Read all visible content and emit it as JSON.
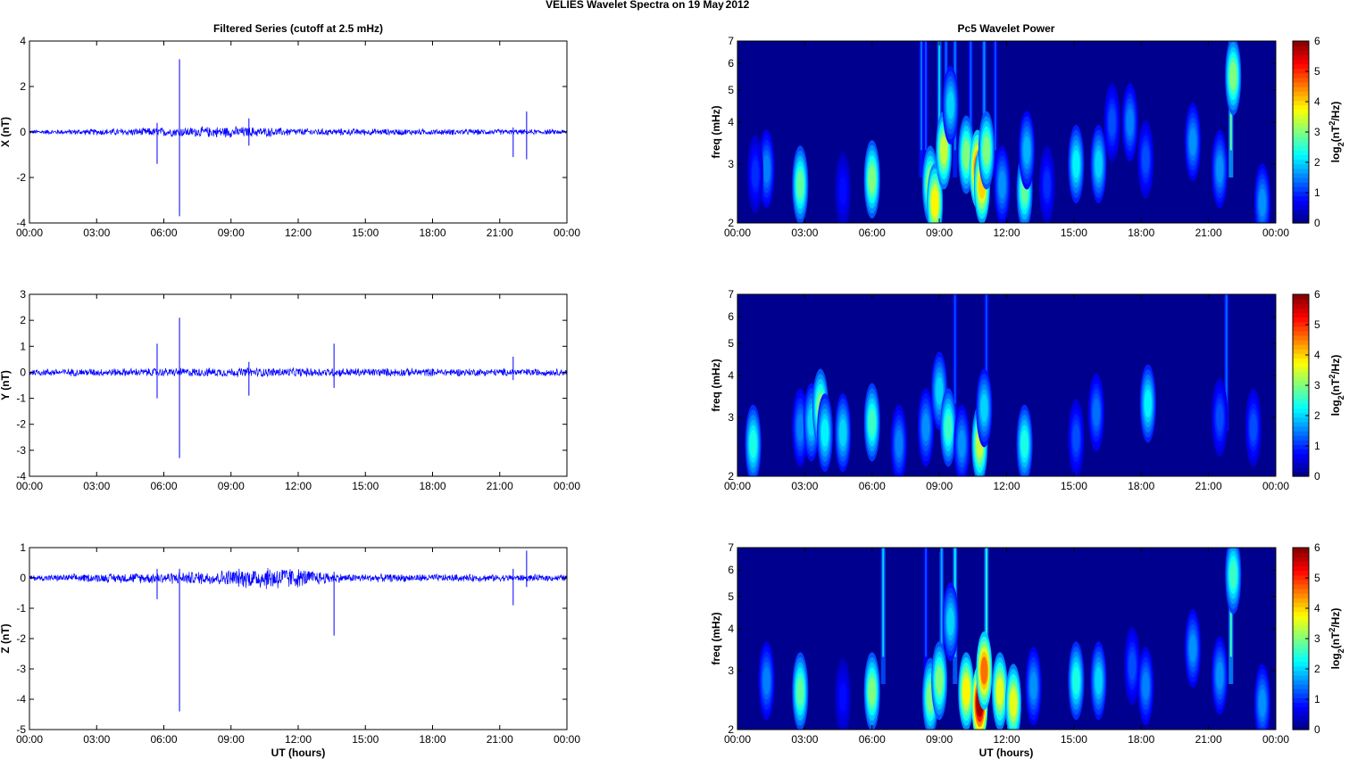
{
  "figure": {
    "title_left": "VELIES Wavelet Spectra on 19 May",
    "title_right": "2012",
    "left_title": "Filtered Series (cutoff at 2.5 mHz)",
    "right_title": "Pc5 Wavelet Power",
    "xlabel": "UT (hours)",
    "freq_label": "freq (mHz)",
    "colorbar_label": "log2(nT2/Hz)"
  },
  "colors": {
    "trace": "#0000ff",
    "spectrum_background": "#00008f"
  },
  "chart_data": [
    {
      "type": "line",
      "ylabel": "X (nT)",
      "ylim": [
        -4,
        4
      ],
      "yticks": [
        -4,
        -2,
        0,
        2,
        4
      ],
      "xticks": [
        "00:00",
        "03:00",
        "06:00",
        "09:00",
        "12:00",
        "15:00",
        "18:00",
        "21:00",
        "00:00"
      ],
      "x_range_hours": [
        0,
        24
      ],
      "noise_amplitude": [
        [
          0,
          0.1
        ],
        [
          9,
          0.28
        ],
        [
          12,
          0.18
        ],
        [
          24,
          0.12
        ]
      ],
      "spikes": [
        {
          "t": 5.7,
          "min": -1.4,
          "max": 0.4
        },
        {
          "t": 6.7,
          "min": -3.7,
          "max": 3.2
        },
        {
          "t": 9.8,
          "min": -0.6,
          "max": 0.6
        },
        {
          "t": 21.6,
          "min": -1.1,
          "max": 0.2
        },
        {
          "t": 22.2,
          "min": -1.2,
          "max": 0.9
        }
      ]
    },
    {
      "type": "line",
      "ylabel": "Y (nT)",
      "ylim": [
        -4,
        3
      ],
      "yticks": [
        -4,
        -3,
        -2,
        -1,
        0,
        1,
        2,
        3
      ],
      "xticks": [
        "00:00",
        "03:00",
        "06:00",
        "09:00",
        "12:00",
        "15:00",
        "18:00",
        "21:00",
        "00:00"
      ],
      "x_range_hours": [
        0,
        24
      ],
      "noise_amplitude": [
        [
          0,
          0.15
        ],
        [
          10,
          0.2
        ],
        [
          24,
          0.15
        ]
      ],
      "spikes": [
        {
          "t": 5.7,
          "min": -1.0,
          "max": 1.1
        },
        {
          "t": 6.7,
          "min": -3.3,
          "max": 2.1
        },
        {
          "t": 9.8,
          "min": -0.9,
          "max": 0.4
        },
        {
          "t": 13.6,
          "min": -0.6,
          "max": 1.1
        },
        {
          "t": 21.6,
          "min": -0.3,
          "max": 0.6
        }
      ]
    },
    {
      "type": "line",
      "ylabel": "Z (nT)",
      "ylim": [
        -5,
        1
      ],
      "yticks": [
        -5,
        -4,
        -3,
        -2,
        -1,
        0,
        1
      ],
      "xticks": [
        "00:00",
        "03:00",
        "06:00",
        "09:00",
        "12:00",
        "15:00",
        "18:00",
        "21:00",
        "00:00"
      ],
      "x_range_hours": [
        0,
        24
      ],
      "noise_amplitude": [
        [
          0,
          0.1
        ],
        [
          8,
          0.25
        ],
        [
          11,
          0.45
        ],
        [
          14,
          0.15
        ],
        [
          24,
          0.12
        ]
      ],
      "spikes": [
        {
          "t": 5.7,
          "min": -0.7,
          "max": 0.3
        },
        {
          "t": 6.7,
          "min": -4.4,
          "max": 0.3
        },
        {
          "t": 13.6,
          "min": -1.9,
          "max": 0.2
        },
        {
          "t": 21.6,
          "min": -0.9,
          "max": 0.3
        },
        {
          "t": 22.2,
          "min": -0.3,
          "max": 0.9
        }
      ]
    },
    {
      "type": "heatmap",
      "ylabel": "freq (mHz)",
      "yscale": "log",
      "ylim": [
        2,
        7
      ],
      "yticks": [
        2,
        3,
        4,
        5,
        6,
        7
      ],
      "zlim": [
        0,
        6
      ],
      "colorbar_ticks": [
        0,
        1,
        2,
        3,
        4,
        5,
        6
      ],
      "xticks": [
        "00:00",
        "03:00",
        "06:00",
        "09:00",
        "12:00",
        "15:00",
        "18:00",
        "21:00",
        "00:00"
      ],
      "blobs": [
        {
          "t": 1.3,
          "f": 2.9,
          "p": 1.5
        },
        {
          "t": 0.8,
          "f": 2.8,
          "p": 1.0
        },
        {
          "t": 2.8,
          "f": 2.6,
          "p": 2.8
        },
        {
          "t": 4.7,
          "f": 2.5,
          "p": 0.8
        },
        {
          "t": 6.0,
          "f": 2.7,
          "p": 3.0
        },
        {
          "t": 8.6,
          "f": 2.6,
          "p": 3.2
        },
        {
          "t": 8.8,
          "f": 2.3,
          "p": 3.8
        },
        {
          "t": 9.2,
          "f": 3.3,
          "p": 3.4
        },
        {
          "t": 9.5,
          "f": 4.5,
          "p": 2.0
        },
        {
          "t": 10.2,
          "f": 3.2,
          "p": 3.0
        },
        {
          "t": 10.7,
          "f": 2.9,
          "p": 4.6
        },
        {
          "t": 10.9,
          "f": 2.6,
          "p": 4.0
        },
        {
          "t": 11.1,
          "f": 3.3,
          "p": 3.0
        },
        {
          "t": 11.8,
          "f": 2.6,
          "p": 1.6
        },
        {
          "t": 12.8,
          "f": 2.5,
          "p": 2.8
        },
        {
          "t": 12.9,
          "f": 3.3,
          "p": 1.8
        },
        {
          "t": 13.8,
          "f": 2.6,
          "p": 1.0
        },
        {
          "t": 15.1,
          "f": 3.0,
          "p": 2.2
        },
        {
          "t": 16.1,
          "f": 3.0,
          "p": 2.0
        },
        {
          "t": 16.7,
          "f": 4.0,
          "p": 1.2
        },
        {
          "t": 17.5,
          "f": 4.0,
          "p": 1.5
        },
        {
          "t": 18.2,
          "f": 3.1,
          "p": 1.2
        },
        {
          "t": 20.3,
          "f": 3.5,
          "p": 1.6
        },
        {
          "t": 21.5,
          "f": 2.9,
          "p": 1.6
        },
        {
          "t": 22.1,
          "f": 5.5,
          "p": 3.0
        },
        {
          "t": 23.4,
          "f": 2.3,
          "p": 1.6
        }
      ],
      "streaks": [
        {
          "t": 8.2,
          "p": 1.4
        },
        {
          "t": 8.4,
          "p": 1.2
        },
        {
          "t": 9.0,
          "p": 2.0
        },
        {
          "t": 9.3,
          "p": 1.4
        },
        {
          "t": 9.7,
          "p": 1.5
        },
        {
          "t": 10.4,
          "p": 1.3
        },
        {
          "t": 11.0,
          "p": 1.6
        },
        {
          "t": 11.5,
          "p": 1.2
        },
        {
          "t": 22.0,
          "p": 2.8
        }
      ]
    },
    {
      "type": "heatmap",
      "ylabel": "freq (mHz)",
      "yscale": "log",
      "ylim": [
        2,
        7
      ],
      "yticks": [
        2,
        3,
        4,
        5,
        6,
        7
      ],
      "zlim": [
        0,
        6
      ],
      "colorbar_ticks": [
        0,
        1,
        2,
        3,
        4,
        5,
        6
      ],
      "xticks": [
        "00:00",
        "03:00",
        "06:00",
        "09:00",
        "12:00",
        "15:00",
        "18:00",
        "21:00",
        "00:00"
      ],
      "blobs": [
        {
          "t": 0.7,
          "f": 2.5,
          "p": 2.4
        },
        {
          "t": 2.8,
          "f": 2.8,
          "p": 1.5
        },
        {
          "t": 3.3,
          "f": 2.9,
          "p": 2.0
        },
        {
          "t": 3.7,
          "f": 3.2,
          "p": 3.0
        },
        {
          "t": 3.9,
          "f": 2.7,
          "p": 2.2
        },
        {
          "t": 4.7,
          "f": 2.7,
          "p": 2.0
        },
        {
          "t": 6.0,
          "f": 2.9,
          "p": 2.6
        },
        {
          "t": 7.2,
          "f": 2.5,
          "p": 1.5
        },
        {
          "t": 8.4,
          "f": 2.8,
          "p": 1.6
        },
        {
          "t": 9.0,
          "f": 3.6,
          "p": 2.0
        },
        {
          "t": 9.4,
          "f": 2.8,
          "p": 2.6
        },
        {
          "t": 10.0,
          "f": 2.5,
          "p": 1.6
        },
        {
          "t": 10.8,
          "f": 2.5,
          "p": 3.4
        },
        {
          "t": 11.0,
          "f": 3.2,
          "p": 2.0
        },
        {
          "t": 12.8,
          "f": 2.5,
          "p": 2.4
        },
        {
          "t": 15.1,
          "f": 2.6,
          "p": 1.2
        },
        {
          "t": 16.0,
          "f": 3.1,
          "p": 1.4
        },
        {
          "t": 18.3,
          "f": 3.3,
          "p": 2.2
        },
        {
          "t": 21.5,
          "f": 3.0,
          "p": 1.2
        },
        {
          "t": 23.0,
          "f": 2.8,
          "p": 1.2
        }
      ],
      "streaks": [
        {
          "t": 9.7,
          "p": 1.2
        },
        {
          "t": 11.1,
          "p": 1.2
        },
        {
          "t": 21.8,
          "p": 1.4
        }
      ]
    },
    {
      "type": "heatmap",
      "ylabel": "freq (mHz)",
      "yscale": "log",
      "ylim": [
        2,
        7
      ],
      "yticks": [
        2,
        3,
        4,
        5,
        6,
        7
      ],
      "zlim": [
        0,
        6
      ],
      "colorbar_ticks": [
        0,
        1,
        2,
        3,
        4,
        5,
        6
      ],
      "xticks": [
        "00:00",
        "03:00",
        "06:00",
        "09:00",
        "12:00",
        "15:00",
        "18:00",
        "21:00",
        "00:00"
      ],
      "blobs": [
        {
          "t": 1.3,
          "f": 2.8,
          "p": 1.5
        },
        {
          "t": 2.8,
          "f": 2.6,
          "p": 2.8
        },
        {
          "t": 4.7,
          "f": 2.5,
          "p": 0.8
        },
        {
          "t": 6.0,
          "f": 2.6,
          "p": 3.0
        },
        {
          "t": 8.6,
          "f": 2.5,
          "p": 3.0
        },
        {
          "t": 9.0,
          "f": 2.8,
          "p": 3.0
        },
        {
          "t": 9.5,
          "f": 4.2,
          "p": 2.0
        },
        {
          "t": 10.2,
          "f": 2.6,
          "p": 3.8
        },
        {
          "t": 10.8,
          "f": 2.4,
          "p": 5.8
        },
        {
          "t": 11.0,
          "f": 3.0,
          "p": 4.6
        },
        {
          "t": 11.7,
          "f": 2.6,
          "p": 3.6
        },
        {
          "t": 12.3,
          "f": 2.4,
          "p": 3.6
        },
        {
          "t": 13.2,
          "f": 2.7,
          "p": 1.6
        },
        {
          "t": 15.1,
          "f": 2.8,
          "p": 2.4
        },
        {
          "t": 16.1,
          "f": 2.8,
          "p": 2.0
        },
        {
          "t": 17.6,
          "f": 3.1,
          "p": 1.2
        },
        {
          "t": 18.2,
          "f": 2.7,
          "p": 1.5
        },
        {
          "t": 20.3,
          "f": 3.5,
          "p": 1.6
        },
        {
          "t": 21.5,
          "f": 2.9,
          "p": 1.6
        },
        {
          "t": 22.1,
          "f": 5.8,
          "p": 2.6
        },
        {
          "t": 23.4,
          "f": 2.4,
          "p": 1.6
        }
      ],
      "streaks": [
        {
          "t": 6.5,
          "p": 2.0
        },
        {
          "t": 8.4,
          "p": 1.2
        },
        {
          "t": 9.1,
          "p": 1.8
        },
        {
          "t": 9.7,
          "p": 2.2
        },
        {
          "t": 11.1,
          "p": 2.4
        },
        {
          "t": 22.0,
          "p": 2.6
        }
      ]
    }
  ]
}
